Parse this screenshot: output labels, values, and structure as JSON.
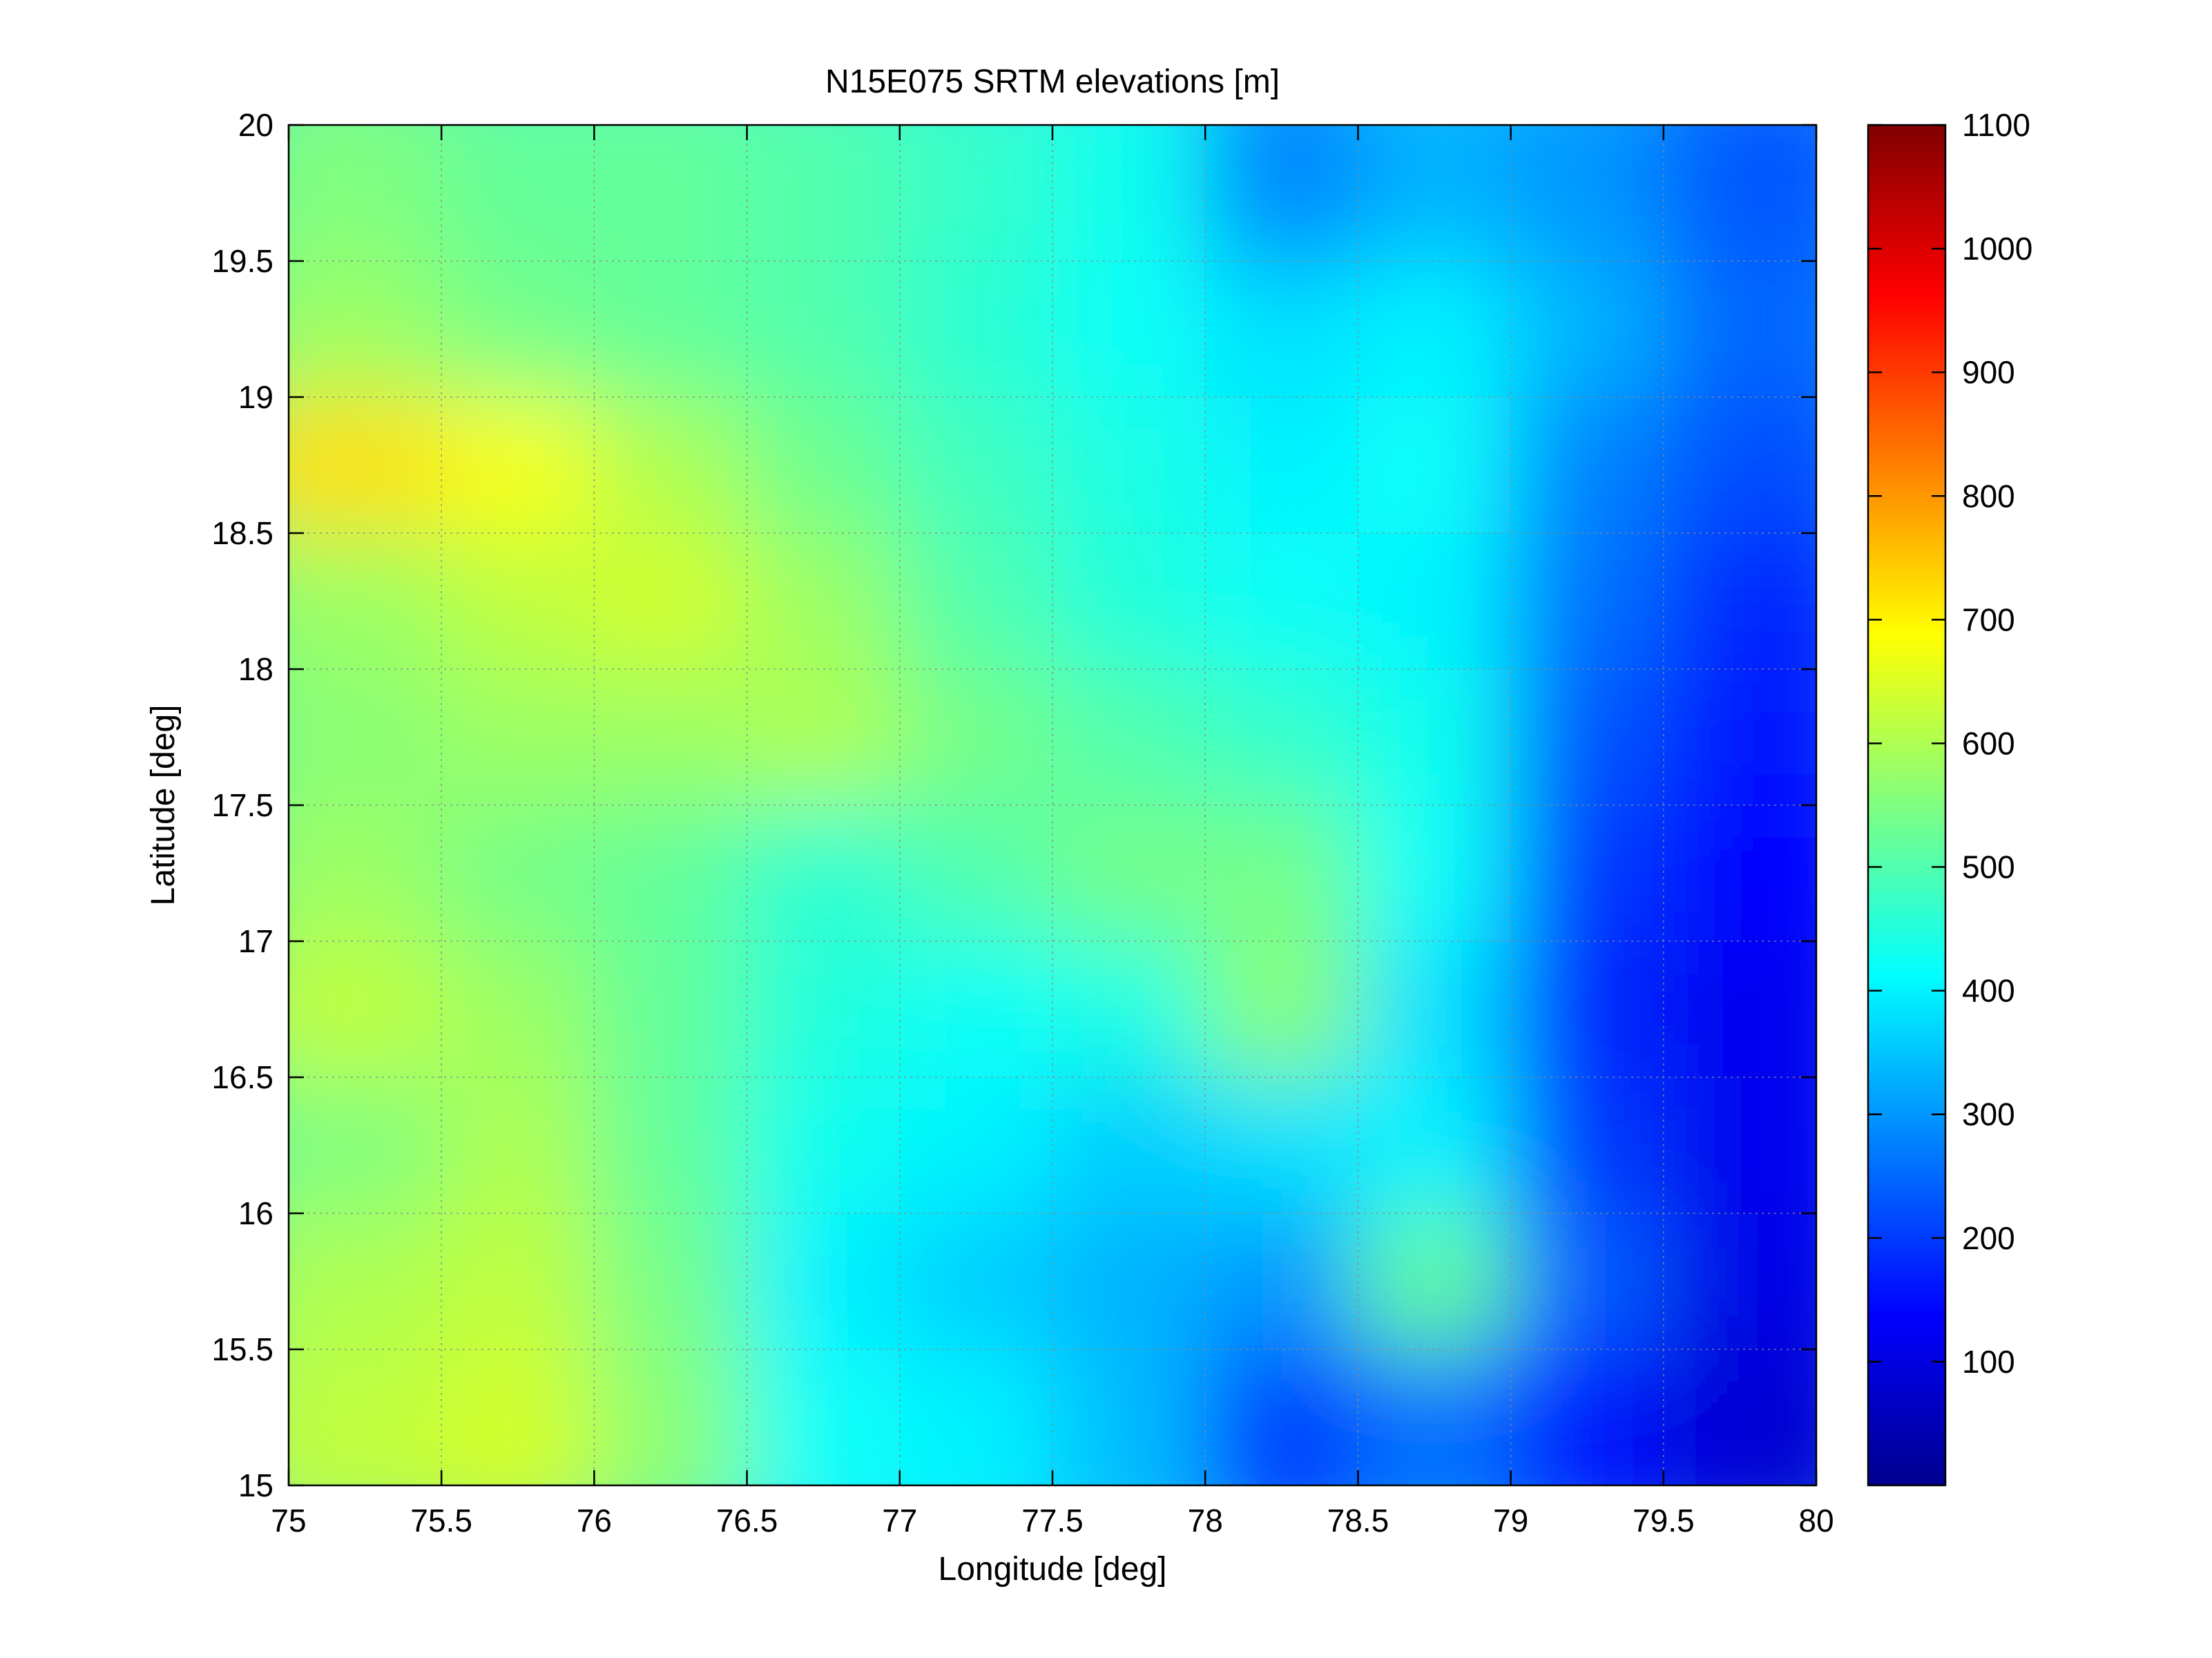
{
  "chart_data": {
    "type": "heatmap",
    "title": "N15E075 SRTM elevations [m]",
    "xlabel": "Longitude [deg]",
    "ylabel": "Latitude [deg]",
    "xlim": [
      75,
      80
    ],
    "ylim": [
      15,
      20
    ],
    "x_ticks": [
      75,
      75.5,
      76,
      76.5,
      77,
      77.5,
      78,
      78.5,
      79,
      79.5,
      80
    ],
    "x_tick_labels": [
      "75",
      "75.5",
      "76",
      "76.5",
      "77",
      "77.5",
      "78",
      "78.5",
      "79",
      "79.5",
      "80"
    ],
    "y_ticks": [
      15,
      15.5,
      16,
      16.5,
      17,
      17.5,
      18,
      18.5,
      19,
      19.5,
      20
    ],
    "y_tick_labels": [
      "15",
      "15.5",
      "16",
      "16.5",
      "17",
      "17.5",
      "18",
      "18.5",
      "19",
      "19.5",
      "20"
    ],
    "grid": true,
    "colormap": "jet",
    "colorbar": {
      "location": "right",
      "clim": [
        0,
        1100
      ],
      "ticks": [
        100,
        200,
        300,
        400,
        500,
        600,
        700,
        800,
        900,
        1000,
        1100
      ],
      "tick_labels": [
        "100",
        "200",
        "300",
        "400",
        "500",
        "600",
        "700",
        "800",
        "900",
        "1000",
        "1100"
      ]
    },
    "elevation_grid": {
      "lon_step": 0.5,
      "lat_step": 0.5,
      "lon_centers": [
        75.25,
        75.75,
        76.25,
        76.75,
        77.25,
        77.75,
        78.25,
        78.75,
        79.25,
        79.75
      ],
      "lat_centers": [
        19.75,
        19.25,
        18.75,
        18.25,
        17.75,
        17.25,
        16.75,
        16.25,
        15.75,
        15.25
      ],
      "values": [
        [
          550,
          520,
          520,
          500,
          470,
          430,
          280,
          330,
          300,
          230
        ],
        [
          580,
          540,
          520,
          500,
          460,
          420,
          380,
          400,
          330,
          250
        ],
        [
          720,
          680,
          600,
          530,
          480,
          440,
          400,
          420,
          280,
          220
        ],
        [
          580,
          620,
          640,
          580,
          500,
          450,
          420,
          400,
          260,
          180
        ],
        [
          560,
          580,
          580,
          600,
          540,
          500,
          470,
          430,
          230,
          160
        ],
        [
          580,
          540,
          520,
          460,
          500,
          540,
          540,
          420,
          200,
          140
        ],
        [
          620,
          580,
          520,
          450,
          420,
          440,
          560,
          380,
          180,
          120
        ],
        [
          550,
          600,
          520,
          430,
          400,
          360,
          380,
          400,
          200,
          120
        ],
        [
          600,
          620,
          540,
          400,
          360,
          330,
          300,
          520,
          240,
          110
        ],
        [
          620,
          640,
          560,
          420,
          400,
          340,
          200,
          260,
          160,
          90
        ]
      ]
    }
  }
}
